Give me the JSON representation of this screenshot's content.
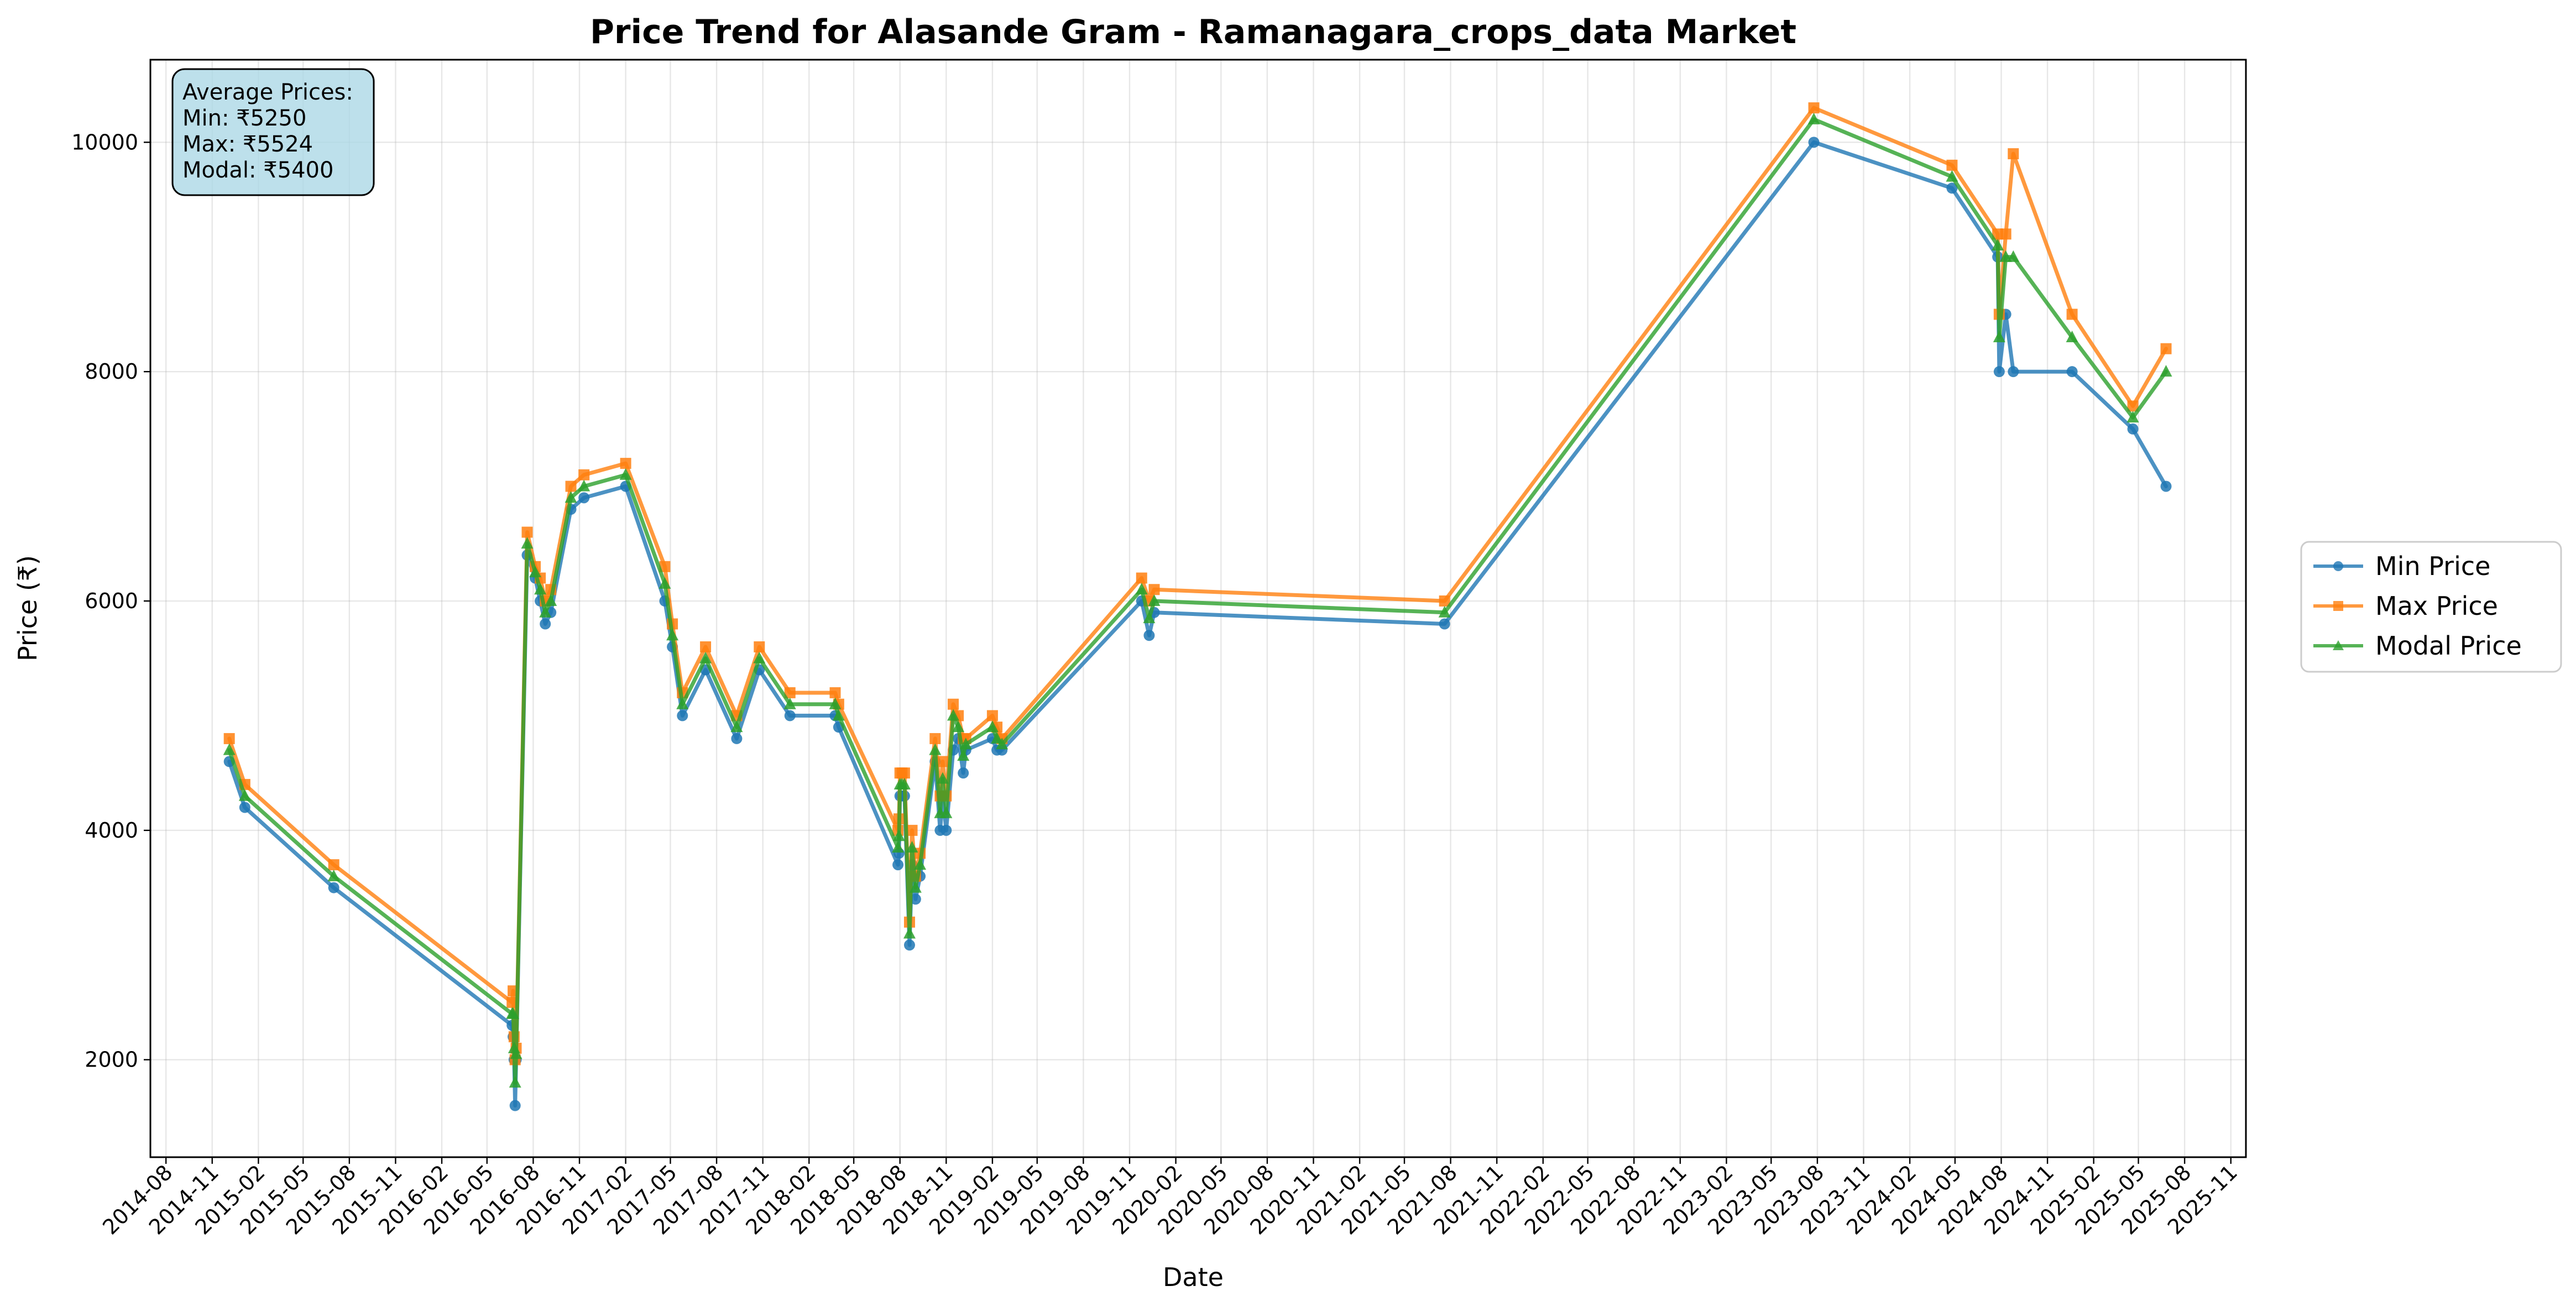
{
  "chart_data": {
    "type": "line",
    "title": "Price Trend for Alasande Gram - Ramanagara_crops_data Market",
    "xlabel": "Date",
    "ylabel": "Price (₹)",
    "xlim": [
      "2014-07-01",
      "2025-12-01"
    ],
    "ylim": [
      1150,
      10720
    ],
    "grid": true,
    "legend_position": "right outside",
    "x_ticks": [
      "2014-08",
      "2014-11",
      "2015-02",
      "2015-05",
      "2015-08",
      "2015-11",
      "2016-02",
      "2016-05",
      "2016-08",
      "2016-11",
      "2017-02",
      "2017-05",
      "2017-08",
      "2017-11",
      "2018-02",
      "2018-05",
      "2018-08",
      "2018-11",
      "2019-02",
      "2019-05",
      "2019-08",
      "2019-11",
      "2020-02",
      "2020-05",
      "2020-08",
      "2020-11",
      "2021-02",
      "2021-05",
      "2021-08",
      "2021-11",
      "2022-02",
      "2022-05",
      "2022-08",
      "2022-11",
      "2023-02",
      "2023-05",
      "2023-08",
      "2023-11",
      "2024-02",
      "2024-05",
      "2024-08",
      "2024-11",
      "2025-02",
      "2025-05",
      "2025-08",
      "2025-11"
    ],
    "y_ticks": [
      2000,
      4000,
      6000,
      8000,
      10000
    ],
    "info_box": {
      "heading": "Average Prices:",
      "lines": [
        "Min: ₹5250",
        "Max: ₹5524",
        "Modal: ₹5400"
      ]
    },
    "series": [
      {
        "name": "Min Price",
        "color": "#1f77b4",
        "marker": "circle",
        "points": [
          [
            "2014-12-05",
            4600
          ],
          [
            "2015-01-05",
            4200
          ],
          [
            "2015-07-01",
            3500
          ],
          [
            "2016-06-20",
            2300
          ],
          [
            "2016-06-22",
            2200
          ],
          [
            "2016-06-24",
            2000
          ],
          [
            "2016-06-26",
            1600
          ],
          [
            "2016-06-28",
            2000
          ],
          [
            "2016-07-20",
            6400
          ],
          [
            "2016-08-05",
            6200
          ],
          [
            "2016-08-15",
            6000
          ],
          [
            "2016-08-25",
            5800
          ],
          [
            "2016-09-05",
            5900
          ],
          [
            "2016-10-15",
            6800
          ],
          [
            "2016-11-10",
            6900
          ],
          [
            "2017-02-01",
            7000
          ],
          [
            "2017-04-20",
            6000
          ],
          [
            "2017-05-05",
            5600
          ],
          [
            "2017-05-25",
            5000
          ],
          [
            "2017-07-10",
            5400
          ],
          [
            "2017-09-10",
            4800
          ],
          [
            "2017-10-25",
            5400
          ],
          [
            "2017-12-25",
            5000
          ],
          [
            "2018-03-25",
            5000
          ],
          [
            "2018-04-01",
            4900
          ],
          [
            "2018-07-28",
            3700
          ],
          [
            "2018-07-30",
            3800
          ],
          [
            "2018-08-01",
            4300
          ],
          [
            "2018-08-05",
            4300
          ],
          [
            "2018-08-10",
            4300
          ],
          [
            "2018-08-20",
            3000
          ],
          [
            "2018-08-25",
            3700
          ],
          [
            "2018-09-01",
            3400
          ],
          [
            "2018-09-10",
            3600
          ],
          [
            "2018-10-10",
            4600
          ],
          [
            "2018-10-20",
            4000
          ],
          [
            "2018-10-25",
            4300
          ],
          [
            "2018-11-01",
            4000
          ],
          [
            "2018-11-15",
            4700
          ],
          [
            "2018-11-25",
            4800
          ],
          [
            "2018-12-05",
            4500
          ],
          [
            "2018-12-10",
            4700
          ],
          [
            "2019-02-01",
            4800
          ],
          [
            "2019-02-10",
            4700
          ],
          [
            "2019-02-20",
            4700
          ],
          [
            "2019-11-25",
            6000
          ],
          [
            "2019-12-10",
            5700
          ],
          [
            "2019-12-20",
            5900
          ],
          [
            "2021-07-20",
            5800
          ],
          [
            "2023-07-25",
            10000
          ],
          [
            "2024-04-25",
            9600
          ],
          [
            "2024-07-25",
            9000
          ],
          [
            "2024-07-28",
            8000
          ],
          [
            "2024-08-10",
            8500
          ],
          [
            "2024-08-25",
            8000
          ],
          [
            "2024-12-20",
            8000
          ],
          [
            "2025-04-20",
            7500
          ],
          [
            "2025-06-25",
            7000
          ]
        ]
      },
      {
        "name": "Max Price",
        "color": "#ff7f0e",
        "marker": "square",
        "points": [
          [
            "2014-12-05",
            4800
          ],
          [
            "2015-01-05",
            4400
          ],
          [
            "2015-07-01",
            3700
          ],
          [
            "2016-06-20",
            2500
          ],
          [
            "2016-06-22",
            2600
          ],
          [
            "2016-06-24",
            2200
          ],
          [
            "2016-06-26",
            2000
          ],
          [
            "2016-06-28",
            2100
          ],
          [
            "2016-07-20",
            6600
          ],
          [
            "2016-08-05",
            6300
          ],
          [
            "2016-08-15",
            6200
          ],
          [
            "2016-08-25",
            6000
          ],
          [
            "2016-09-05",
            6100
          ],
          [
            "2016-10-15",
            7000
          ],
          [
            "2016-11-10",
            7100
          ],
          [
            "2017-02-01",
            7200
          ],
          [
            "2017-04-20",
            6300
          ],
          [
            "2017-05-05",
            5800
          ],
          [
            "2017-05-25",
            5200
          ],
          [
            "2017-07-10",
            5600
          ],
          [
            "2017-09-10",
            5000
          ],
          [
            "2017-10-25",
            5600
          ],
          [
            "2017-12-25",
            5200
          ],
          [
            "2018-03-25",
            5200
          ],
          [
            "2018-04-01",
            5100
          ],
          [
            "2018-07-28",
            4000
          ],
          [
            "2018-07-30",
            4100
          ],
          [
            "2018-08-01",
            4500
          ],
          [
            "2018-08-05",
            4500
          ],
          [
            "2018-08-10",
            4500
          ],
          [
            "2018-08-20",
            3200
          ],
          [
            "2018-08-25",
            4000
          ],
          [
            "2018-09-01",
            3600
          ],
          [
            "2018-09-10",
            3800
          ],
          [
            "2018-10-10",
            4800
          ],
          [
            "2018-10-20",
            4300
          ],
          [
            "2018-10-25",
            4600
          ],
          [
            "2018-11-01",
            4300
          ],
          [
            "2018-11-15",
            5100
          ],
          [
            "2018-11-25",
            5000
          ],
          [
            "2018-12-05",
            4800
          ],
          [
            "2018-12-10",
            4800
          ],
          [
            "2019-02-01",
            5000
          ],
          [
            "2019-02-10",
            4900
          ],
          [
            "2019-02-20",
            4800
          ],
          [
            "2019-11-25",
            6200
          ],
          [
            "2019-12-10",
            6000
          ],
          [
            "2019-12-20",
            6100
          ],
          [
            "2021-07-20",
            6000
          ],
          [
            "2023-07-25",
            10300
          ],
          [
            "2024-04-25",
            9800
          ],
          [
            "2024-07-25",
            9200
          ],
          [
            "2024-07-28",
            8500
          ],
          [
            "2024-08-10",
            9200
          ],
          [
            "2024-08-25",
            9900
          ],
          [
            "2024-12-20",
            8500
          ],
          [
            "2025-04-20",
            7700
          ],
          [
            "2025-06-25",
            8200
          ]
        ]
      },
      {
        "name": "Modal Price",
        "color": "#2ca02c",
        "marker": "triangle",
        "points": [
          [
            "2014-12-05",
            4700
          ],
          [
            "2015-01-05",
            4300
          ],
          [
            "2015-07-01",
            3600
          ],
          [
            "2016-06-20",
            2400
          ],
          [
            "2016-06-22",
            2400
          ],
          [
            "2016-06-24",
            2100
          ],
          [
            "2016-06-26",
            1800
          ],
          [
            "2016-06-28",
            2050
          ],
          [
            "2016-07-20",
            6500
          ],
          [
            "2016-08-05",
            6250
          ],
          [
            "2016-08-15",
            6100
          ],
          [
            "2016-08-25",
            5900
          ],
          [
            "2016-09-05",
            6000
          ],
          [
            "2016-10-15",
            6900
          ],
          [
            "2016-11-10",
            7000
          ],
          [
            "2017-02-01",
            7100
          ],
          [
            "2017-04-20",
            6150
          ],
          [
            "2017-05-05",
            5700
          ],
          [
            "2017-05-25",
            5100
          ],
          [
            "2017-07-10",
            5500
          ],
          [
            "2017-09-10",
            4900
          ],
          [
            "2017-10-25",
            5500
          ],
          [
            "2017-12-25",
            5100
          ],
          [
            "2018-03-25",
            5100
          ],
          [
            "2018-04-01",
            5000
          ],
          [
            "2018-07-28",
            3850
          ],
          [
            "2018-07-30",
            3950
          ],
          [
            "2018-08-01",
            4400
          ],
          [
            "2018-08-05",
            4400
          ],
          [
            "2018-08-10",
            4400
          ],
          [
            "2018-08-20",
            3100
          ],
          [
            "2018-08-25",
            3850
          ],
          [
            "2018-09-01",
            3500
          ],
          [
            "2018-09-10",
            3700
          ],
          [
            "2018-10-10",
            4700
          ],
          [
            "2018-10-20",
            4150
          ],
          [
            "2018-10-25",
            4450
          ],
          [
            "2018-11-01",
            4150
          ],
          [
            "2018-11-15",
            5000
          ],
          [
            "2018-11-25",
            4900
          ],
          [
            "2018-12-05",
            4650
          ],
          [
            "2018-12-10",
            4750
          ],
          [
            "2019-02-01",
            4900
          ],
          [
            "2019-02-10",
            4800
          ],
          [
            "2019-02-20",
            4750
          ],
          [
            "2019-11-25",
            6100
          ],
          [
            "2019-12-10",
            5850
          ],
          [
            "2019-12-20",
            6000
          ],
          [
            "2021-07-20",
            5900
          ],
          [
            "2023-07-25",
            10200
          ],
          [
            "2024-04-25",
            9700
          ],
          [
            "2024-07-25",
            9100
          ],
          [
            "2024-07-28",
            8300
          ],
          [
            "2024-08-10",
            9000
          ],
          [
            "2024-08-25",
            9000
          ],
          [
            "2024-12-20",
            8300
          ],
          [
            "2025-04-20",
            7600
          ],
          [
            "2025-06-25",
            8000
          ]
        ]
      }
    ]
  }
}
